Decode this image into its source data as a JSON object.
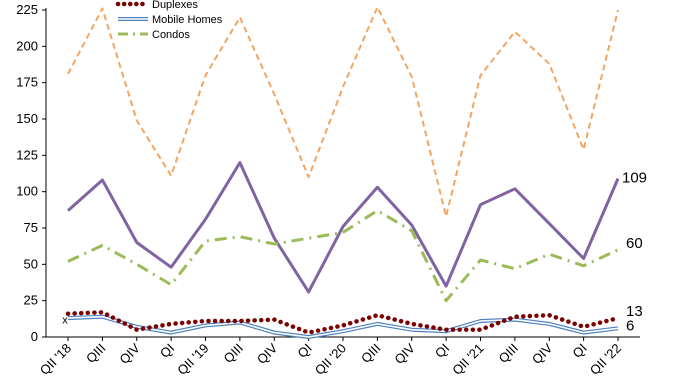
{
  "chart_data": {
    "type": "line",
    "categories": [
      "QII '18",
      "QIII",
      "QIV",
      "QI",
      "QII '19",
      "QIII",
      "QIV",
      "QI",
      "QII '20",
      "QIII",
      "QIV",
      "QI",
      "QII '21",
      "QIII",
      "QIV",
      "QI",
      "QII '22"
    ],
    "ylim": [
      0,
      225
    ],
    "yticks": [
      0,
      25,
      50,
      75,
      100,
      125,
      150,
      175,
      200,
      225
    ],
    "grid": false,
    "legend_position": "top-left",
    "series": [
      {
        "key": "orange",
        "name": "",
        "color": "#f4a460",
        "style": "dashed",
        "values": [
          181,
          226,
          149,
          111,
          180,
          220,
          167,
          110,
          172,
          227,
          179,
          83,
          180,
          210,
          188,
          129,
          225
        ],
        "end_label": "225"
      },
      {
        "key": "purple",
        "name": "",
        "color": "#8064a2",
        "style": "solid",
        "values": [
          87,
          108,
          65,
          48,
          81,
          120,
          68,
          31,
          76,
          103,
          77,
          35,
          91,
          102,
          78,
          54,
          109
        ],
        "end_label": "109"
      },
      {
        "key": "condos",
        "name": "Condos",
        "color": "#9bbb59",
        "style": "dashdot",
        "values": [
          52,
          63,
          50,
          36,
          66,
          69,
          64,
          68,
          72,
          87,
          73,
          25,
          53,
          47,
          57,
          49,
          60
        ],
        "end_label": "60"
      },
      {
        "key": "duplexes",
        "name": "Duplexes",
        "color": "#7b0000",
        "style": "dotted",
        "values": [
          16,
          17,
          5,
          9,
          11,
          11,
          12,
          3,
          8,
          15,
          9,
          5,
          5,
          14,
          15,
          7,
          13
        ],
        "end_label": "13"
      },
      {
        "key": "mobile",
        "name": "Mobile Homes",
        "color": "#4f81bd",
        "style": "double",
        "values": [
          13,
          14,
          7,
          3,
          8,
          10,
          3,
          0,
          4,
          9,
          5,
          4,
          11,
          12,
          9,
          3,
          6
        ],
        "end_label": "6"
      }
    ],
    "annotations": [
      {
        "text": "x",
        "category_index": 0,
        "value": 12
      }
    ]
  }
}
